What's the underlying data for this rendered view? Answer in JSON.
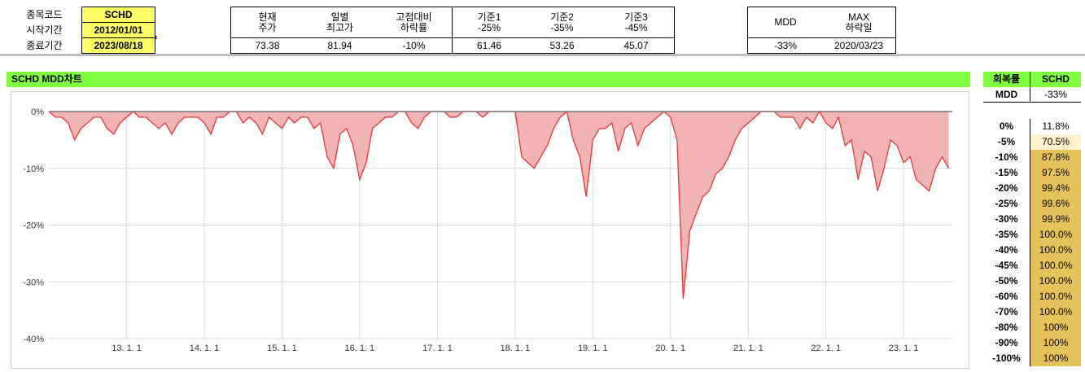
{
  "inputs": {
    "rows": [
      [
        "종목코드",
        "SCHD"
      ],
      [
        "시작기간",
        "2012/01/01"
      ],
      [
        "종료기간",
        "2023/08/18"
      ]
    ]
  },
  "summary": {
    "headers": [
      "현재\n주가",
      "일별\n최고가",
      "고점대비\n하락률",
      "기준1\n-25%",
      "기준2\n-35%",
      "기준3\n-45%"
    ],
    "values": [
      "73.38",
      "81.94",
      "-10%",
      "61.46",
      "53.26",
      "45.07"
    ]
  },
  "mdd": {
    "headers": [
      "MDD",
      "MAX\n하락일"
    ],
    "values": [
      "-33%",
      "2020/03/23"
    ]
  },
  "recovery": {
    "headers": [
      "회복률",
      "SCHD"
    ],
    "mdd_row": [
      "MDD",
      "-33%"
    ],
    "rows": [
      [
        "0%",
        "11.8%"
      ],
      [
        "-5%",
        "70.5%"
      ],
      [
        "-10%",
        "87.8%"
      ],
      [
        "-15%",
        "97.5%"
      ],
      [
        "-20%",
        "99.4%"
      ],
      [
        "-25%",
        "99.6%"
      ],
      [
        "-30%",
        "99.9%"
      ],
      [
        "-35%",
        "100.0%"
      ],
      [
        "-40%",
        "100.0%"
      ],
      [
        "-45%",
        "100.0%"
      ],
      [
        "-50%",
        "100.0%"
      ],
      [
        "-60%",
        "100.0%"
      ],
      [
        "-70%",
        "100.0%"
      ],
      [
        "-80%",
        "100%"
      ],
      [
        "-90%",
        "100%"
      ],
      [
        "-100%",
        "100%"
      ]
    ]
  },
  "chart_data": {
    "type": "area",
    "title": "SCHD MDD차트",
    "color": "#e0393e",
    "fill": "#f2b3b3",
    "grid": true,
    "xlim": [
      "2012-01-01",
      "2023-08-18"
    ],
    "ylim": [
      -40,
      0
    ],
    "yticks": [
      {
        "value": -40,
        "label": "-40%"
      },
      {
        "value": -30,
        "label": "-30%"
      },
      {
        "value": -20,
        "label": "-20%"
      },
      {
        "value": -10,
        "label": "-10%"
      },
      {
        "value": 0,
        "label": "0%"
      }
    ],
    "xticks": [
      {
        "value": "2013-01-01",
        "label": "13. 1. 1"
      },
      {
        "value": "2014-01-01",
        "label": "14. 1. 1"
      },
      {
        "value": "2015-01-01",
        "label": "15. 1. 1"
      },
      {
        "value": "2016-01-01",
        "label": "16. 1. 1"
      },
      {
        "value": "2017-01-01",
        "label": "17. 1. 1"
      },
      {
        "value": "2018-01-01",
        "label": "18. 1. 1"
      },
      {
        "value": "2019-01-01",
        "label": "19. 1. 1"
      },
      {
        "value": "2020-01-01",
        "label": "20. 1. 1"
      },
      {
        "value": "2021-01-01",
        "label": "21. 1. 1"
      },
      {
        "value": "2022-01-01",
        "label": "22. 1. 1"
      },
      {
        "value": "2023-01-01",
        "label": "23. 1. 1"
      }
    ],
    "x": [
      "2012-01",
      "2012-02",
      "2012-03",
      "2012-04",
      "2012-05",
      "2012-06",
      "2012-07",
      "2012-08",
      "2012-09",
      "2012-10",
      "2012-11",
      "2012-12",
      "2013-01",
      "2013-02",
      "2013-03",
      "2013-04",
      "2013-05",
      "2013-06",
      "2013-07",
      "2013-08",
      "2013-09",
      "2013-10",
      "2013-11",
      "2013-12",
      "2014-01",
      "2014-02",
      "2014-03",
      "2014-04",
      "2014-05",
      "2014-06",
      "2014-07",
      "2014-08",
      "2014-09",
      "2014-10",
      "2014-11",
      "2014-12",
      "2015-01",
      "2015-02",
      "2015-03",
      "2015-04",
      "2015-05",
      "2015-06",
      "2015-07",
      "2015-08",
      "2015-09",
      "2015-10",
      "2015-11",
      "2015-12",
      "2016-01",
      "2016-02",
      "2016-03",
      "2016-04",
      "2016-05",
      "2016-06",
      "2016-07",
      "2016-08",
      "2016-09",
      "2016-10",
      "2016-11",
      "2016-12",
      "2017-01",
      "2017-02",
      "2017-03",
      "2017-04",
      "2017-05",
      "2017-06",
      "2017-07",
      "2017-08",
      "2017-09",
      "2017-10",
      "2017-11",
      "2017-12",
      "2018-01",
      "2018-02",
      "2018-03",
      "2018-04",
      "2018-05",
      "2018-06",
      "2018-07",
      "2018-08",
      "2018-09",
      "2018-10",
      "2018-11",
      "2018-12",
      "2019-01",
      "2019-02",
      "2019-03",
      "2019-04",
      "2019-05",
      "2019-06",
      "2019-07",
      "2019-08",
      "2019-09",
      "2019-10",
      "2019-11",
      "2019-12",
      "2020-01",
      "2020-02",
      "2020-03",
      "2020-04",
      "2020-05",
      "2020-06",
      "2020-07",
      "2020-08",
      "2020-09",
      "2020-10",
      "2020-11",
      "2020-12",
      "2021-01",
      "2021-02",
      "2021-03",
      "2021-04",
      "2021-05",
      "2021-06",
      "2021-07",
      "2021-08",
      "2021-09",
      "2021-10",
      "2021-11",
      "2021-12",
      "2022-01",
      "2022-02",
      "2022-03",
      "2022-04",
      "2022-05",
      "2022-06",
      "2022-07",
      "2022-08",
      "2022-09",
      "2022-10",
      "2022-11",
      "2022-12",
      "2023-01",
      "2023-02",
      "2023-03",
      "2023-04",
      "2023-05",
      "2023-06",
      "2023-07",
      "2023-08"
    ],
    "values": [
      0,
      -1,
      -1,
      -2,
      -5,
      -3,
      -2,
      -1,
      -1,
      -3,
      -4,
      -2,
      -1,
      0,
      -1,
      -1,
      -2,
      -3,
      -2,
      -4,
      -2,
      -1,
      -1,
      -1,
      -2,
      -4,
      -1,
      -1,
      0,
      0,
      -2,
      -1,
      -2,
      -4,
      -1,
      -2,
      -3,
      -1,
      -2,
      -1,
      -1,
      -3,
      -2,
      -8,
      -10,
      -4,
      -3,
      -6,
      -12,
      -9,
      -3,
      -2,
      -1,
      -1,
      0,
      0,
      -2,
      -3,
      -1,
      0,
      0,
      0,
      -1,
      -1,
      0,
      0,
      0,
      -1,
      0,
      0,
      0,
      0,
      0,
      -8,
      -9,
      -10,
      -8,
      -6,
      -3,
      -1,
      0,
      -5,
      -8,
      -15,
      -5,
      -3,
      -3,
      -2,
      -7,
      -3,
      -2,
      -6,
      -3,
      -2,
      -1,
      0,
      -1,
      -5,
      -33,
      -21,
      -18,
      -15,
      -14,
      -11,
      -10,
      -8,
      -5,
      -3,
      -2,
      -1,
      0,
      0,
      0,
      -1,
      -1,
      -1,
      -3,
      -1,
      -2,
      0,
      -2,
      -3,
      -1,
      -6,
      -5,
      -12,
      -7,
      -8,
      -14,
      -10,
      -5,
      -6,
      -9,
      -8,
      -12,
      -13,
      -14,
      -10,
      -8,
      -10
    ]
  }
}
